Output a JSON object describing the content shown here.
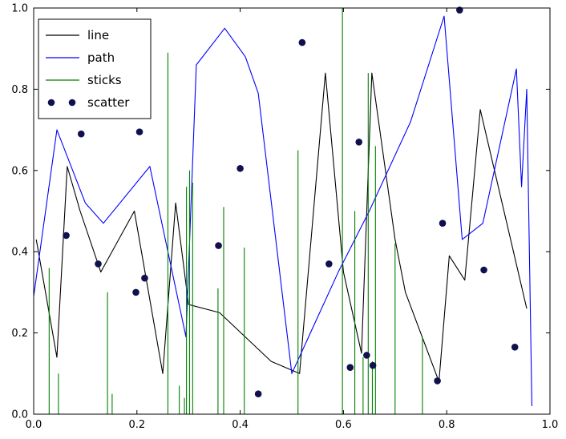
{
  "chart_data": {
    "type": "line",
    "title": "",
    "xlabel": "",
    "ylabel": "",
    "xlim": [
      0,
      1
    ],
    "ylim": [
      0,
      1
    ],
    "grid": false,
    "x_tick_values": [
      0.0,
      0.2,
      0.4,
      0.6,
      0.8,
      1.0
    ],
    "x_ticks": [
      "0.0",
      "0.2",
      "0.4",
      "0.6",
      "0.8",
      "1.0"
    ],
    "y_tick_values": [
      0.0,
      0.2,
      0.4,
      0.6,
      0.8,
      1.0
    ],
    "y_ticks": [
      "0.0",
      "0.2",
      "0.4",
      "0.6",
      "0.8",
      "1.0"
    ],
    "colors": {
      "line": "#000000",
      "path": "#0000ff",
      "sticks": "#008000",
      "scatter": "#10104e",
      "frame": "#000000",
      "background": "#ffffff"
    },
    "legend": {
      "position": "upper-left",
      "entries": [
        {
          "label": "line",
          "type": "line",
          "color": "#000000"
        },
        {
          "label": "path",
          "type": "line",
          "color": "#0000ff"
        },
        {
          "label": "sticks",
          "type": "line",
          "color": "#008000"
        },
        {
          "label": "scatter",
          "type": "marker",
          "color": "#10104e"
        }
      ]
    },
    "series": [
      {
        "name": "line",
        "type": "line",
        "color": "#000000",
        "x": [
          0.005,
          0.045,
          0.065,
          0.09,
          0.13,
          0.195,
          0.25,
          0.275,
          0.3,
          0.36,
          0.46,
          0.515,
          0.565,
          0.6,
          0.635,
          0.655,
          0.7,
          0.72,
          0.785,
          0.805,
          0.835,
          0.865,
          0.955
        ],
        "y": [
          0.43,
          0.14,
          0.61,
          0.5,
          0.35,
          0.5,
          0.1,
          0.52,
          0.27,
          0.25,
          0.13,
          0.1,
          0.84,
          0.35,
          0.15,
          0.84,
          0.43,
          0.3,
          0.08,
          0.39,
          0.33,
          0.75,
          0.26
        ]
      },
      {
        "name": "path",
        "type": "line",
        "color": "#0000ff",
        "x": [
          0.0,
          0.045,
          0.1,
          0.135,
          0.225,
          0.295,
          0.315,
          0.37,
          0.41,
          0.435,
          0.5,
          0.59,
          0.65,
          0.73,
          0.795,
          0.83,
          0.87,
          0.935,
          0.945,
          0.955,
          0.965
        ],
        "y": [
          0.29,
          0.7,
          0.52,
          0.47,
          0.61,
          0.19,
          0.86,
          0.95,
          0.88,
          0.79,
          0.1,
          0.35,
          0.5,
          0.72,
          0.98,
          0.43,
          0.47,
          0.85,
          0.56,
          0.8,
          0.02
        ]
      },
      {
        "name": "sticks",
        "type": "sticks",
        "color": "#008000",
        "x": [
          0.03,
          0.048,
          0.143,
          0.152,
          0.26,
          0.282,
          0.292,
          0.296,
          0.302,
          0.308,
          0.357,
          0.368,
          0.408,
          0.512,
          0.598,
          0.622,
          0.638,
          0.648,
          0.656,
          0.662,
          0.7,
          0.753
        ],
        "y": [
          0.36,
          0.1,
          0.3,
          0.05,
          0.89,
          0.07,
          0.04,
          0.56,
          0.6,
          0.57,
          0.31,
          0.51,
          0.41,
          0.65,
          1.0,
          0.5,
          0.14,
          0.84,
          0.13,
          0.66,
          0.42,
          0.19
        ]
      },
      {
        "name": "scatter",
        "type": "scatter",
        "color": "#10104e",
        "x": [
          0.063,
          0.092,
          0.125,
          0.198,
          0.205,
          0.215,
          0.358,
          0.4,
          0.435,
          0.52,
          0.572,
          0.613,
          0.63,
          0.645,
          0.657,
          0.782,
          0.792,
          0.825,
          0.872,
          0.932
        ],
        "y": [
          0.44,
          0.69,
          0.37,
          0.3,
          0.695,
          0.335,
          0.415,
          0.605,
          0.05,
          0.915,
          0.37,
          0.115,
          0.67,
          0.145,
          0.12,
          0.082,
          0.47,
          0.995,
          0.355,
          0.165
        ]
      }
    ]
  }
}
